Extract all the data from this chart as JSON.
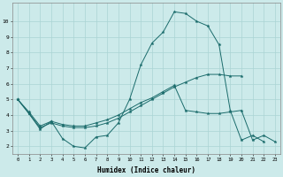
{
  "background_color": "#cceaea",
  "grid_color": "#aad4d4",
  "line_color": "#1a6b6b",
  "xlabel": "Humidex (Indice chaleur)",
  "xlim": [
    -0.5,
    23.5
  ],
  "ylim": [
    1.5,
    11.2
  ],
  "xticks": [
    0,
    1,
    2,
    3,
    4,
    5,
    6,
    7,
    8,
    9,
    10,
    11,
    12,
    13,
    14,
    15,
    16,
    17,
    18,
    19,
    20,
    21,
    22,
    23
  ],
  "yticks": [
    2,
    3,
    4,
    5,
    6,
    7,
    8,
    9,
    10
  ],
  "line1_x": [
    0,
    1,
    2,
    3,
    4,
    5,
    6,
    7,
    8,
    9,
    10,
    11,
    12,
    13,
    14,
    15,
    16,
    17,
    18,
    19,
    20,
    21,
    22
  ],
  "line1_y": [
    5.0,
    4.1,
    3.1,
    3.6,
    2.5,
    2.0,
    1.9,
    2.6,
    2.7,
    3.5,
    5.0,
    7.2,
    8.6,
    9.3,
    10.6,
    10.5,
    10.0,
    9.7,
    8.5,
    4.3,
    2.4,
    2.7,
    2.3
  ],
  "line2_x": [
    0,
    1,
    2,
    3,
    4,
    5,
    6,
    7,
    8,
    9,
    10,
    11,
    12,
    13,
    14,
    15,
    16,
    17,
    18,
    19,
    20,
    21,
    22,
    23
  ],
  "line2_y": [
    5.0,
    4.2,
    3.3,
    3.6,
    3.4,
    3.3,
    3.3,
    3.5,
    3.7,
    4.0,
    4.4,
    4.8,
    5.1,
    5.5,
    5.9,
    4.3,
    4.2,
    4.1,
    4.1,
    4.2,
    4.3,
    2.4,
    2.7,
    2.3
  ],
  "line3_x": [
    0,
    1,
    2,
    3,
    4,
    5,
    6,
    7,
    8,
    9,
    10,
    11,
    12,
    13,
    14,
    15,
    16,
    17,
    18,
    19,
    20
  ],
  "line3_y": [
    5.0,
    4.1,
    3.2,
    3.5,
    3.3,
    3.2,
    3.2,
    3.3,
    3.5,
    3.8,
    4.2,
    4.6,
    5.0,
    5.4,
    5.8,
    6.1,
    6.4,
    6.6,
    6.6,
    6.5,
    6.5
  ]
}
